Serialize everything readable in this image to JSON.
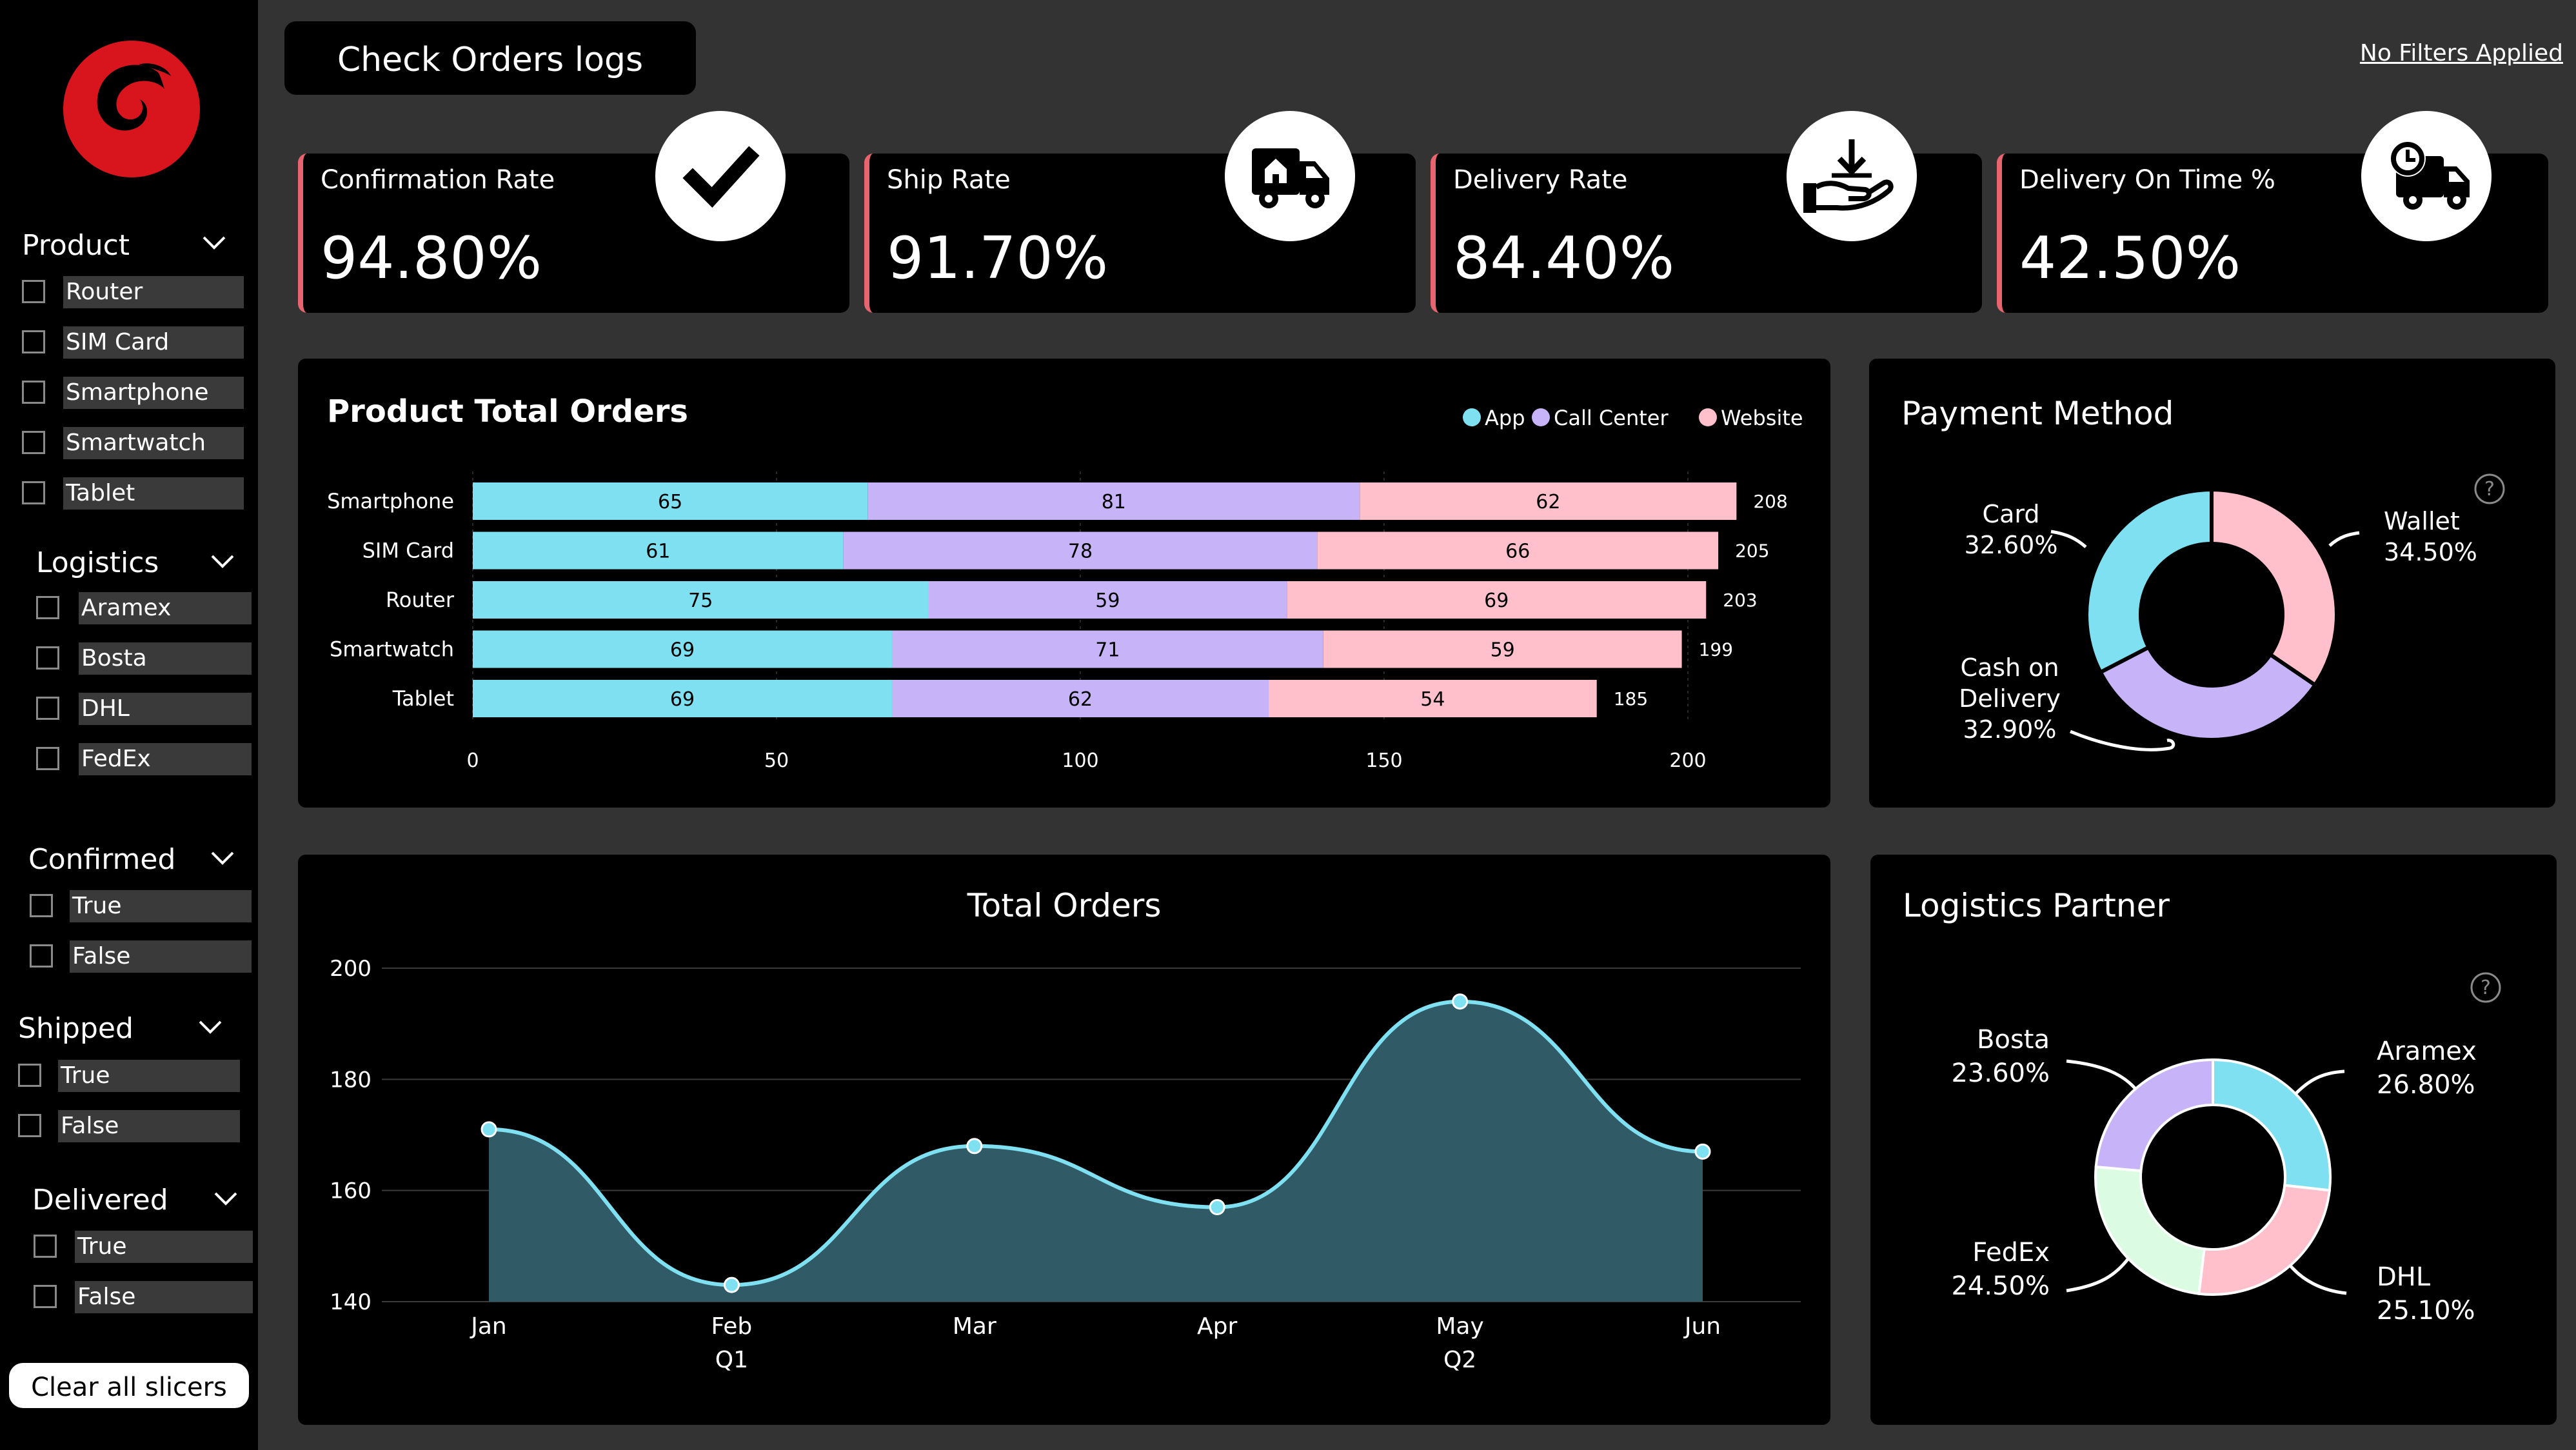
{
  "header": {
    "check_orders_label": "Check Orders logs",
    "no_filters_label": "No Filters Applied"
  },
  "slicers": [
    {
      "title": "Product",
      "items": [
        "Router",
        "SIM Card",
        "Smartphone",
        "Smartwatch",
        "Tablet"
      ]
    },
    {
      "title": "Logistics",
      "items": [
        "Aramex",
        "Bosta",
        "DHL",
        "FedEx"
      ]
    },
    {
      "title": "Confirmed",
      "items": [
        "True",
        "False"
      ]
    },
    {
      "title": "Shipped",
      "items": [
        "True",
        "False"
      ]
    },
    {
      "title": "Delivered",
      "items": [
        "True",
        "False"
      ]
    }
  ],
  "clear_slicers_label": "Clear all slicers",
  "kpis": [
    {
      "label": "Confirmation Rate",
      "value": "94.80%",
      "icon": "checkmark-icon"
    },
    {
      "label": "Ship Rate",
      "value": "91.70%",
      "icon": "home-delivery-truck-icon"
    },
    {
      "label": "Delivery Rate",
      "value": "84.40%",
      "icon": "hand-receive-package-icon"
    },
    {
      "label": "Delivery On Time %",
      "value": "42.50%",
      "icon": "clock-truck-icon"
    }
  ],
  "colors": {
    "app": "#7fe0f2",
    "call_center": "#c7b3f7",
    "website": "#ffc0cb",
    "fedex": "#dcfbe3",
    "accent": "#e8646f",
    "line": "#7fe0f2",
    "area": "#2f5a66"
  },
  "chart_data": [
    {
      "type": "bar",
      "orientation": "horizontal",
      "stacked": true,
      "title": "Product Total Orders",
      "categories": [
        "Smartphone",
        "SIM Card",
        "Router",
        "Smartwatch",
        "Tablet"
      ],
      "series": [
        {
          "name": "App",
          "values": [
            65,
            61,
            75,
            69,
            69
          ]
        },
        {
          "name": "Call Center",
          "values": [
            81,
            78,
            59,
            71,
            62
          ]
        },
        {
          "name": "Website",
          "values": [
            62,
            66,
            69,
            59,
            54
          ]
        }
      ],
      "totals": [
        208,
        205,
        203,
        199,
        185
      ],
      "xlim": [
        0,
        200
      ],
      "xticks": [
        0,
        50,
        100,
        150,
        200
      ],
      "legend": "top-right"
    },
    {
      "type": "pie",
      "donut": true,
      "title": "Payment Method",
      "slices": [
        {
          "label": "Wallet",
          "value": 34.5,
          "display": "34.50%"
        },
        {
          "label": "Cash on Delivery",
          "value": 32.9,
          "display": "32.90%"
        },
        {
          "label": "Card",
          "value": 32.6,
          "display": "32.60%"
        }
      ]
    },
    {
      "type": "area",
      "title": "Total Orders",
      "x": [
        "Jan",
        "Feb",
        "Mar",
        "Apr",
        "May",
        "Jun"
      ],
      "x_groups": [
        {
          "label": "Q1",
          "under": "Feb"
        },
        {
          "label": "Q2",
          "under": "May"
        }
      ],
      "values": [
        171,
        143,
        168,
        157,
        194,
        167
      ],
      "ylim": [
        140,
        200
      ],
      "yticks": [
        140,
        160,
        180,
        200
      ],
      "grid": true
    },
    {
      "type": "pie",
      "donut": true,
      "title": "Logistics Partner",
      "slices": [
        {
          "label": "Aramex",
          "value": 26.8,
          "display": "26.80%"
        },
        {
          "label": "DHL",
          "value": 25.1,
          "display": "25.10%"
        },
        {
          "label": "FedEx",
          "value": 24.5,
          "display": "24.50%"
        },
        {
          "label": "Bosta",
          "value": 23.6,
          "display": "23.60%"
        }
      ]
    }
  ]
}
